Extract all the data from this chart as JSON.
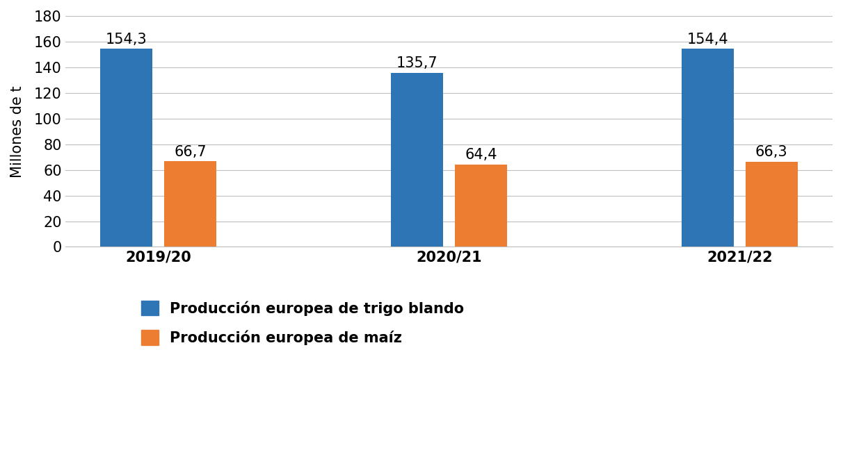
{
  "categories": [
    "2019/20",
    "2020/21",
    "2021/22"
  ],
  "trigo_values": [
    154.3,
    135.7,
    154.4
  ],
  "maiz_values": [
    66.7,
    64.4,
    66.3
  ],
  "trigo_color": "#2E75B6",
  "maiz_color": "#ED7D31",
  "ylabel": "Millones de t",
  "ylim": [
    0,
    180
  ],
  "yticks": [
    0,
    20,
    40,
    60,
    80,
    100,
    120,
    140,
    160,
    180
  ],
  "legend_trigo": "Producción europea de trigo blando",
  "legend_maiz": "Producción europea de maíz",
  "bar_width": 0.18,
  "bar_gap": 0.04,
  "tick_fontsize": 15,
  "ylabel_fontsize": 15,
  "legend_fontsize": 15,
  "annotation_fontsize": 15,
  "background_color": "#FFFFFF",
  "grid_color": "#BFBFBF"
}
